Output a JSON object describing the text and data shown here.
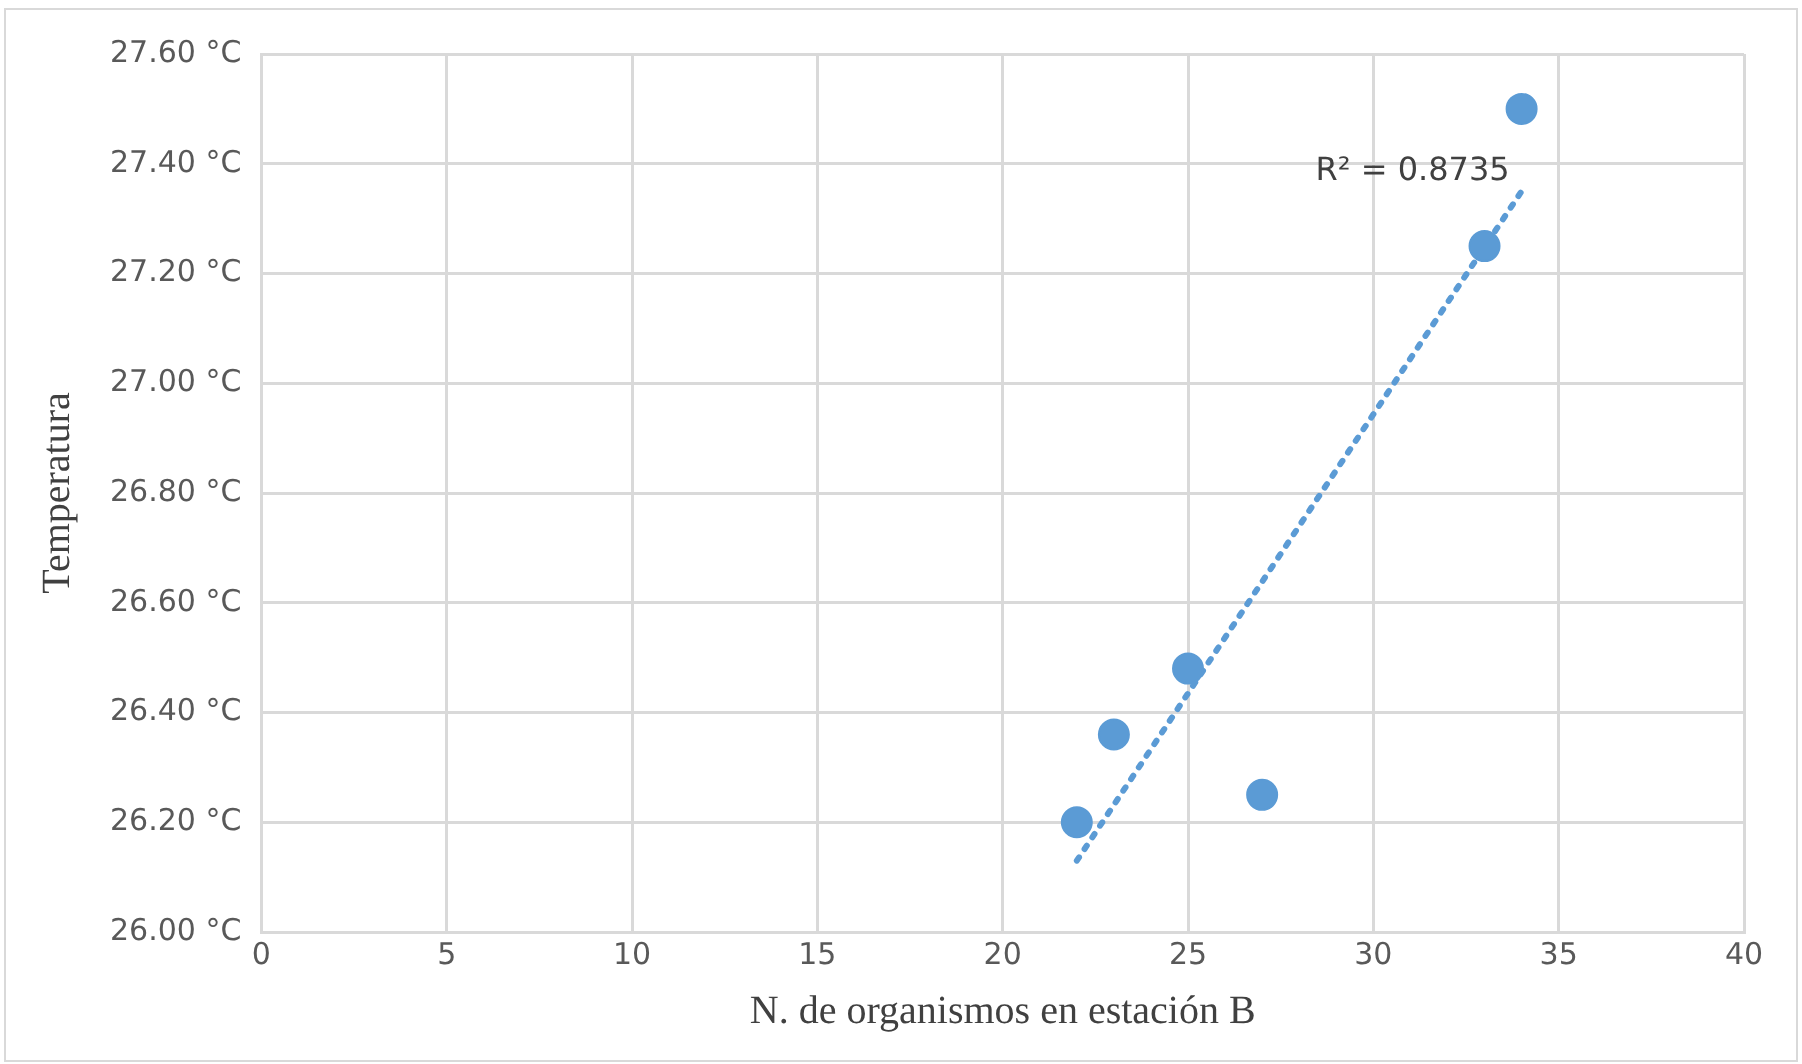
{
  "chart_data": {
    "type": "scatter",
    "xlabel": "N. de organismos en estación B",
    "ylabel": "Temperatura",
    "x": [
      22,
      23,
      25,
      27,
      33,
      34
    ],
    "series": [
      {
        "color": "#5b9bd5",
        "values": [
          26.2,
          26.36,
          26.48,
          26.25,
          27.25,
          27.5
        ]
      },
      {
        "type": "line",
        "color": "#5b9bd5",
        "x": [
          22,
          34
        ],
        "values": [
          26.13,
          27.35
        ],
        "line_style": "dotted",
        "marker": "none"
      }
    ],
    "annotations": [
      "R² = 0.8735"
    ],
    "xlim": [
      0,
      40
    ],
    "xticks": [
      0,
      5,
      10,
      15,
      20,
      25,
      30,
      35,
      40
    ],
    "ylim": [
      26,
      27.6
    ],
    "yticks": [
      {
        "value": 26,
        "label": "26.00 °C"
      },
      {
        "value": 26.2,
        "label": "26.20 °C"
      },
      {
        "value": 26.4,
        "label": "26.40 °C"
      },
      {
        "value": 26.6,
        "label": "26.60 °C"
      },
      {
        "value": 26.8,
        "label": "26.80 °C"
      },
      {
        "value": 27,
        "label": "27.00 °C"
      },
      {
        "value": 27.2,
        "label": "27.20 °C"
      },
      {
        "value": 27.4,
        "label": "27.40 °C"
      },
      {
        "value": 27.6,
        "label": "27.60 °C"
      }
    ],
    "grid": true,
    "legend": false,
    "marker": "circle"
  }
}
